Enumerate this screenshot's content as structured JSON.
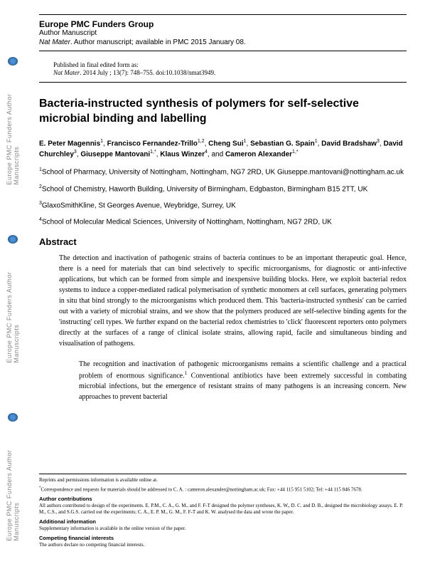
{
  "watermark": "Europe PMC Funders Author Manuscripts",
  "header": {
    "group": "Europe PMC Funders Group",
    "manuscript": "Author Manuscript",
    "journal": "Nat Mater",
    "avail": ". Author manuscript; available in PMC 2015 January 08."
  },
  "pubinfo": {
    "line1": "Published in final edited form as:",
    "journal": "Nat Mater",
    "rest": ". 2014 July ; 13(7): 748–755. doi:10.1038/nmat3949."
  },
  "title": "Bacteria-instructed synthesis of polymers for self-selective microbial binding and labelling",
  "authors_html": "<span class='name'>E. Peter Magennis</span><sup>1</sup>, <span class='name'>Francisco Fernandez-Trillo</span><sup>1,2</sup>, <span class='name'>Cheng Sui</span><sup>1</sup>, <span class='name'>Sebastian G. Spain</span><sup>1</sup>, <span class='name'>David Bradshaw</span><sup>3</sup>, <span class='name'>David Churchley</span><sup>3</sup>, <span class='name'>Giuseppe Mantovani</span><sup>1,*</sup>, <span class='name'>Klaus Winzer</span><sup>4</sup>, and <span class='name'>Cameron Alexander</span><sup>1,*</sup>",
  "affiliations": [
    "<sup>1</sup>School of Pharmacy, University of Nottingham, Nottingham, NG7 2RD, UK Giuseppe.mantovani@nottingham.ac.uk",
    "<sup>2</sup>School of Chemistry, Haworth Building, University of Birmingham, Edgbaston, Birmingham B15 2TT, UK",
    "<sup>3</sup>GlaxoSmithKline, St Georges Avenue, Weybridge, Surrey, UK",
    "<sup>4</sup>School of Molecular Medical Sciences, University of Nottingham, Nottingham, NG7 2RD, UK"
  ],
  "abstract_heading": "Abstract",
  "abstract": "The detection and inactivation of pathogenic strains of bacteria continues to be an important therapeutic goal. Hence, there is a need for materials that can bind selectively to specific microorganisms, for diagnostic or anti-infective applications, but which can be formed from simple and inexpensive building blocks. Here, we exploit bacterial redox systems to induce a copper-mediated radical polymerisation of synthetic monomers at cell surfaces, generating polymers in situ that bind strongly to the microorganisms which produced them. This 'bacteria-instructed synthesis' can be carried out with a variety of microbial strains, and we show that the polymers produced are self-selective binding agents for the 'instructing' cell types. We further expand on the bacterial redox chemistries to 'click' fluorescent reporters onto polymers directly at the surfaces of a range of clinical isolate strains, allowing rapid, facile and simultaneous binding and visualisation of pathogens.",
  "body": "The recognition and inactivation of pathogenic microorganisms remains a scientific challenge and a practical problem of enormous significance.<sup>1</sup> Conventional antibiotics have been extremely successful in combating microbial infections, but the emergence of resistant strains of many pathogens is an increasing concern. New approaches to prevent bacterial",
  "footnotes": {
    "reprint": "Reprints and permissions information is available online at.",
    "corresp": "<sup>*</sup>Correspondence and requests for materials should be addressed to C. A. : cameron.alexander@nottingham.ac.uk; Fax: +44 115 951 5102; Tel: +44 115 846 7678.",
    "contrib_h": "Author contributions",
    "contrib": "All authors contributed to design of the experiments. E. P.M., C. A., G. M., and F. F-T designed the polymer syntheses, K. W., D. C. and D. B., designed the microbiology assays. E. P. M., C.S., and S.G.S. carried out the experiments; C. A., E. P. M., G. M., F. F-T and K. W. analysed the data and wrote the paper.",
    "addl_h": "Additional information",
    "addl": "Supplementary information is available in the online version of the paper.",
    "compete_h": "Competing financial interests",
    "compete": "The authors declare no competing financial interests."
  }
}
